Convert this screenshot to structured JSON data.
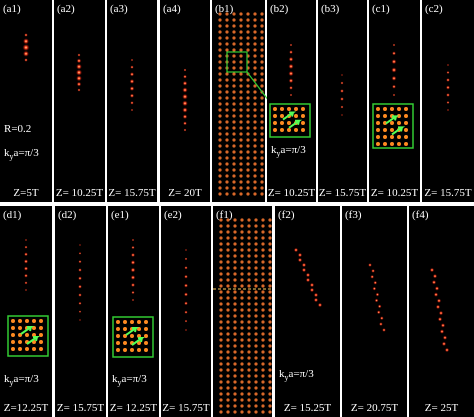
{
  "panels": [
    {
      "label": "(a1)",
      "caption": "Z=5T",
      "annotations": [
        {
          "parts": [
            "R=0.2"
          ]
        },
        {
          "parts": [
            "k",
            "y",
            "a=π/3"
          ]
        }
      ]
    },
    {
      "label": "(a2)",
      "caption": "Z= 10.25T"
    },
    {
      "label": "(a3)",
      "caption": "Z= 15.75T"
    },
    {
      "label": "(a4)",
      "caption": "Z= 20T"
    },
    {
      "label": "(b1)"
    },
    {
      "label": "(b2)",
      "caption": "Z= 10.25T",
      "annotations": [
        {
          "parts": [
            "k",
            "y",
            "a=π/3"
          ]
        }
      ]
    },
    {
      "label": "(b3)",
      "caption": "Z= 15.75T"
    },
    {
      "label": "(c1)",
      "caption": "Z= 10.25T"
    },
    {
      "label": "(c2)",
      "caption": "Z= 15.75T"
    },
    {
      "label": "(d1)",
      "caption": "Z=12.25T",
      "annotations": [
        {
          "parts": [
            "k",
            "y",
            "a=π/3"
          ]
        }
      ]
    },
    {
      "label": "(d2)",
      "caption": "Z= 15.75T"
    },
    {
      "label": "(e1)",
      "caption": "Z= 12.25T",
      "annotations": [
        {
          "parts": [
            "k",
            "y",
            "a=π/3"
          ]
        }
      ]
    },
    {
      "label": "(e2)",
      "caption": "Z= 15.75T"
    },
    {
      "label": "(f1)"
    },
    {
      "label": "(f2)",
      "caption": "Z= 15.25T",
      "annotations": [
        {
          "parts": [
            "k",
            "y",
            "a=π/3"
          ]
        }
      ]
    },
    {
      "label": "(f3)",
      "caption": "Z= 20.75T"
    },
    {
      "label": "(f4)",
      "caption": "Z= 25T"
    }
  ]
}
